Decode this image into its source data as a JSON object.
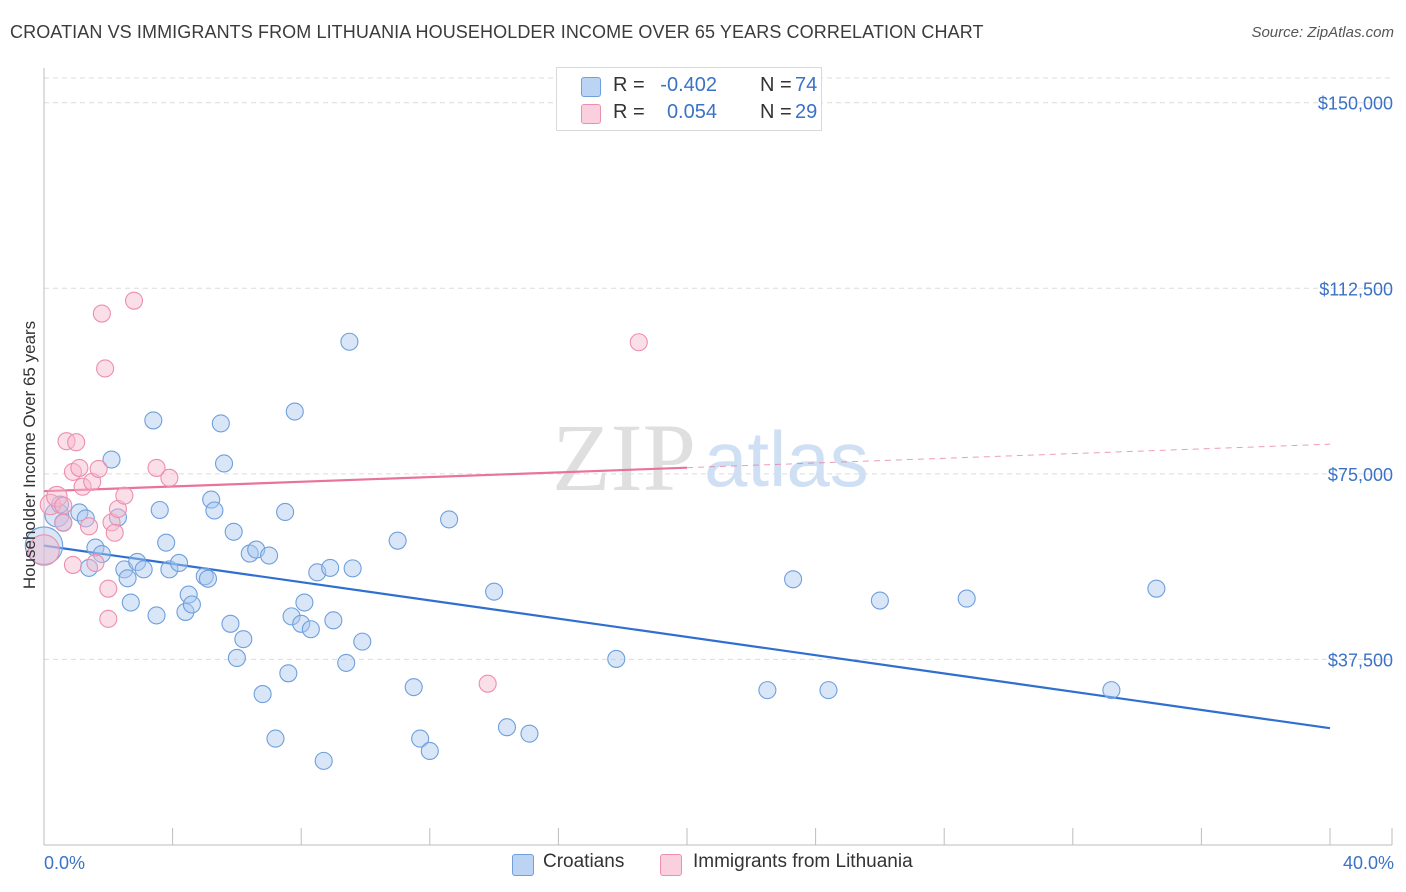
{
  "header": {
    "title": "CROATIAN VS IMMIGRANTS FROM LITHUANIA HOUSEHOLDER INCOME OVER 65 YEARS CORRELATION CHART",
    "source": "Source: ZipAtlas.com"
  },
  "legend": {
    "rows": [
      {
        "r_label": "R =",
        "r_value": "-0.402",
        "n_label": "N =",
        "n_value": "74"
      },
      {
        "r_label": "R =",
        "r_value": "0.054",
        "n_label": "N =",
        "n_value": "29"
      }
    ]
  },
  "bottom_legend": {
    "items": [
      {
        "label": "Croatians"
      },
      {
        "label": "Immigrants from Lithuania"
      }
    ]
  },
  "watermark": {
    "zip": "ZIP",
    "atlas": "atlas"
  },
  "colors": {
    "croatians_fill": "#a9c8f0",
    "croatians_stroke": "#6f9fdc",
    "croatians_line": "#2f6fd0",
    "lithuania_fill": "#f7b8cc",
    "lithuania_stroke": "#ec8fae",
    "lithuania_line": "#e8739b",
    "tick_label": "#3a72c6",
    "grid": "#dcdcdc"
  },
  "chart_data": {
    "type": "scatter",
    "title": "CROATIAN VS IMMIGRANTS FROM LITHUANIA HOUSEHOLDER INCOME OVER 65 YEARS CORRELATION CHART",
    "xlabel": "",
    "ylabel": "Householder Income Over 65 years",
    "xlim": [
      0,
      40
    ],
    "ylim": [
      0,
      155000
    ],
    "x_tick_labels": [
      {
        "value": 0,
        "label": "0.0%"
      },
      {
        "value": 40,
        "label": "40.0%"
      }
    ],
    "x_minor_ticks": [
      4,
      8,
      12,
      16,
      20,
      24,
      28,
      32,
      36,
      40
    ],
    "y_ticks": [
      {
        "value": 37500,
        "label": "$37,500"
      },
      {
        "value": 75000,
        "label": "$75,000"
      },
      {
        "value": 112500,
        "label": "$112,500"
      },
      {
        "value": 150000,
        "label": "$150,000"
      }
    ],
    "series": [
      {
        "name": "Croatians",
        "trend": {
          "x0": 0,
          "y0": 60500,
          "x1": 40,
          "y1": 23600,
          "solid_until": 40
        },
        "points": [
          [
            0.0,
            60500,
            22
          ],
          [
            0.4,
            66700,
            14
          ],
          [
            0.5,
            68800,
            10
          ],
          [
            0.6,
            65200,
            10
          ],
          [
            1.1,
            67200,
            10
          ],
          [
            1.3,
            66000,
            10
          ],
          [
            1.4,
            56000,
            10
          ],
          [
            1.6,
            60100,
            10
          ],
          [
            1.8,
            58800,
            10
          ],
          [
            2.1,
            77900,
            10
          ],
          [
            2.3,
            66200,
            10
          ],
          [
            2.5,
            55700,
            10
          ],
          [
            2.6,
            53900,
            10
          ],
          [
            2.7,
            49000,
            10
          ],
          [
            2.9,
            57200,
            10
          ],
          [
            3.1,
            55700,
            10
          ],
          [
            3.4,
            85800,
            10
          ],
          [
            3.5,
            46400,
            10
          ],
          [
            3.6,
            67700,
            10
          ],
          [
            3.8,
            61100,
            10
          ],
          [
            3.9,
            55700,
            10
          ],
          [
            4.2,
            57000,
            10
          ],
          [
            4.4,
            47100,
            10
          ],
          [
            4.5,
            50600,
            10
          ],
          [
            4.6,
            48600,
            10
          ],
          [
            5.0,
            54300,
            10
          ],
          [
            5.1,
            53800,
            10
          ],
          [
            5.2,
            69800,
            10
          ],
          [
            5.3,
            67600,
            10
          ],
          [
            5.5,
            85200,
            10
          ],
          [
            5.6,
            77100,
            10
          ],
          [
            5.8,
            44700,
            10
          ],
          [
            5.9,
            63300,
            10
          ],
          [
            6.0,
            37800,
            10
          ],
          [
            6.2,
            41600,
            10
          ],
          [
            6.4,
            58900,
            10
          ],
          [
            6.6,
            59700,
            10
          ],
          [
            6.8,
            30500,
            10
          ],
          [
            7.0,
            58500,
            10
          ],
          [
            7.2,
            21500,
            10
          ],
          [
            7.5,
            67300,
            10
          ],
          [
            7.6,
            34700,
            10
          ],
          [
            7.7,
            46200,
            10
          ],
          [
            7.8,
            87600,
            10
          ],
          [
            8.0,
            44700,
            10
          ],
          [
            8.1,
            49000,
            10
          ],
          [
            8.3,
            43600,
            10
          ],
          [
            8.5,
            55100,
            10
          ],
          [
            8.7,
            17000,
            10
          ],
          [
            8.9,
            56000,
            10
          ],
          [
            9.0,
            45400,
            10
          ],
          [
            9.4,
            36800,
            10
          ],
          [
            9.5,
            101700,
            10
          ],
          [
            9.6,
            55900,
            10
          ],
          [
            9.9,
            41100,
            10
          ],
          [
            11.0,
            61500,
            10
          ],
          [
            11.5,
            31900,
            10
          ],
          [
            11.7,
            21500,
            10
          ],
          [
            12.0,
            19000,
            10
          ],
          [
            12.6,
            65800,
            10
          ],
          [
            14.0,
            51200,
            10
          ],
          [
            14.4,
            23800,
            10
          ],
          [
            15.1,
            22500,
            10
          ],
          [
            17.8,
            37600,
            10
          ],
          [
            22.5,
            31300,
            10
          ],
          [
            23.3,
            53700,
            10
          ],
          [
            24.4,
            31300,
            10
          ],
          [
            26.0,
            49400,
            10
          ],
          [
            28.7,
            49800,
            10
          ],
          [
            33.2,
            31300,
            10
          ],
          [
            34.6,
            51800,
            10
          ]
        ]
      },
      {
        "name": "Immigrants from Lithuania",
        "trend": {
          "x0": 0,
          "y0": 71500,
          "x1": 40,
          "y1": 81000,
          "solid_until": 20
        },
        "points": [
          [
            0.0,
            59600,
            18
          ],
          [
            0.2,
            68800,
            12
          ],
          [
            0.4,
            70400,
            12
          ],
          [
            0.6,
            68600,
            10
          ],
          [
            0.6,
            65100,
            10
          ],
          [
            0.7,
            81600,
            10
          ],
          [
            0.9,
            75400,
            10
          ],
          [
            0.9,
            56600,
            10
          ],
          [
            1.0,
            81400,
            10
          ],
          [
            1.1,
            76200,
            10
          ],
          [
            1.2,
            72400,
            10
          ],
          [
            1.4,
            64400,
            10
          ],
          [
            1.5,
            73400,
            10
          ],
          [
            1.6,
            57000,
            10
          ],
          [
            1.7,
            76000,
            10
          ],
          [
            1.8,
            107400,
            10
          ],
          [
            1.9,
            96300,
            10
          ],
          [
            2.0,
            51800,
            10
          ],
          [
            2.0,
            45700,
            10
          ],
          [
            2.1,
            65200,
            10
          ],
          [
            2.2,
            63100,
            10
          ],
          [
            2.3,
            67900,
            10
          ],
          [
            2.5,
            70600,
            10
          ],
          [
            2.8,
            110000,
            10
          ],
          [
            3.5,
            76200,
            10
          ],
          [
            3.9,
            74200,
            10
          ],
          [
            13.8,
            32600,
            10
          ],
          [
            18.5,
            101600,
            10
          ]
        ]
      }
    ]
  }
}
